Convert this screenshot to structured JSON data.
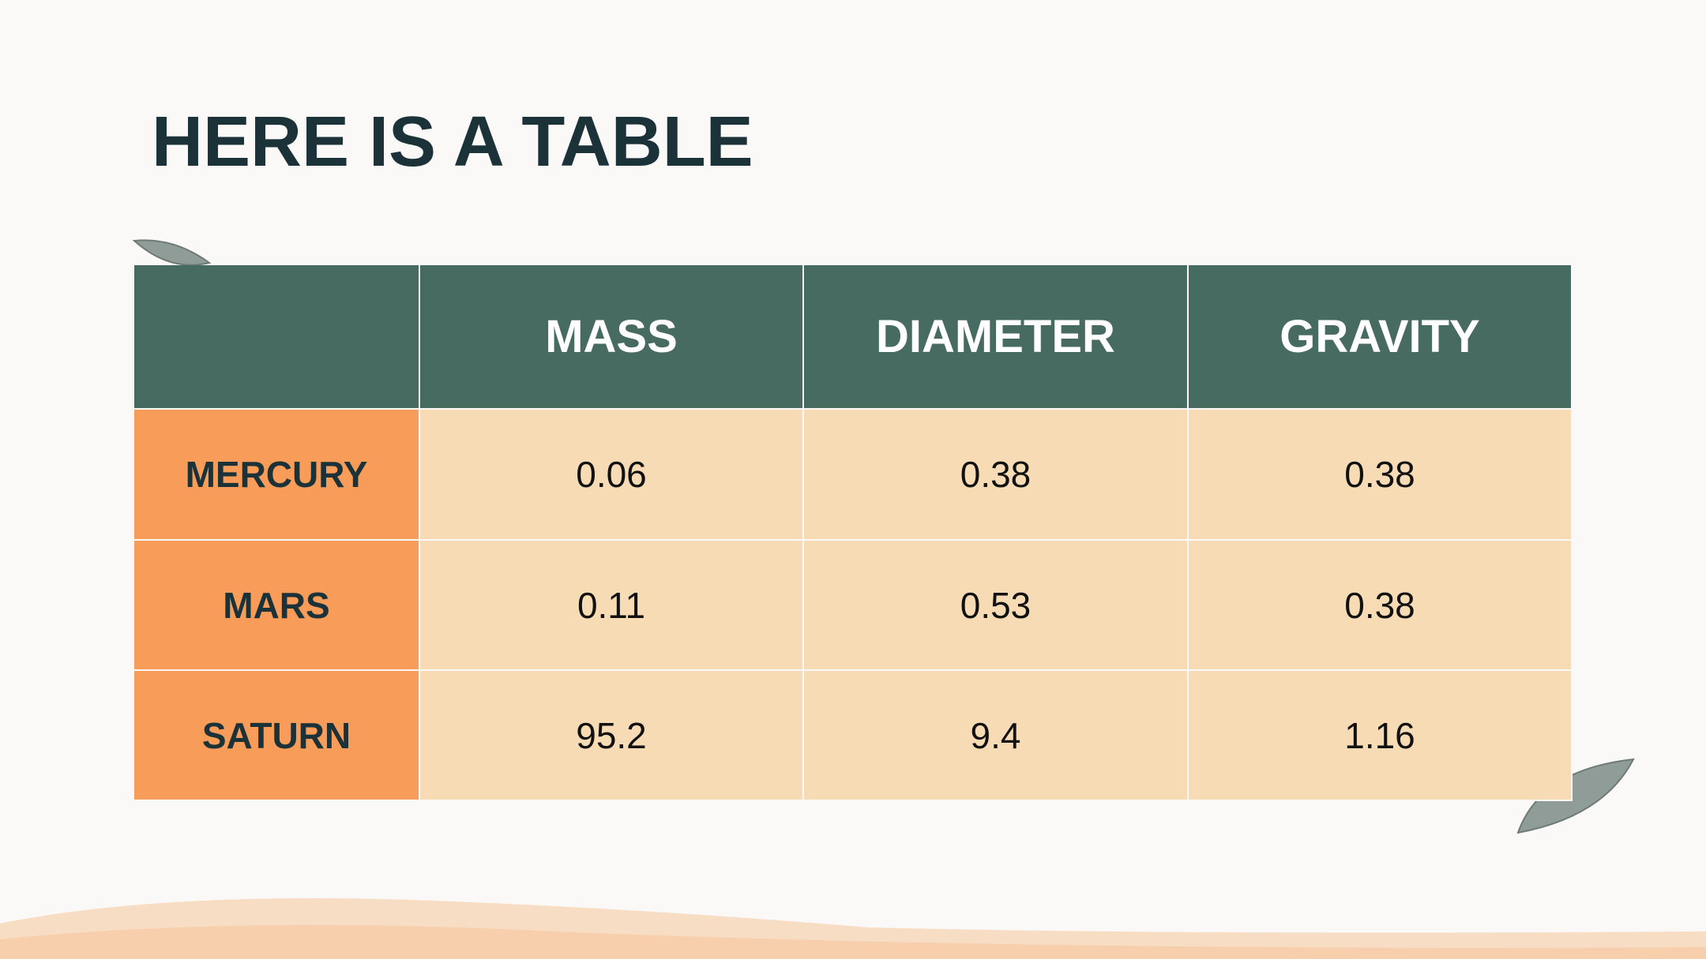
{
  "header": {
    "title": "HERE IS A TABLE"
  },
  "table": {
    "columns": [
      "MASS",
      "DIAMETER",
      "GRAVITY"
    ],
    "rows": [
      {
        "label": "MERCURY",
        "cells": [
          0.06,
          0.38,
          0.38
        ]
      },
      {
        "label": "MARS",
        "cells": [
          0.11,
          0.53,
          0.38
        ]
      },
      {
        "label": "SATURN",
        "cells": [
          95.2,
          9.4,
          1.16
        ]
      }
    ]
  }
}
